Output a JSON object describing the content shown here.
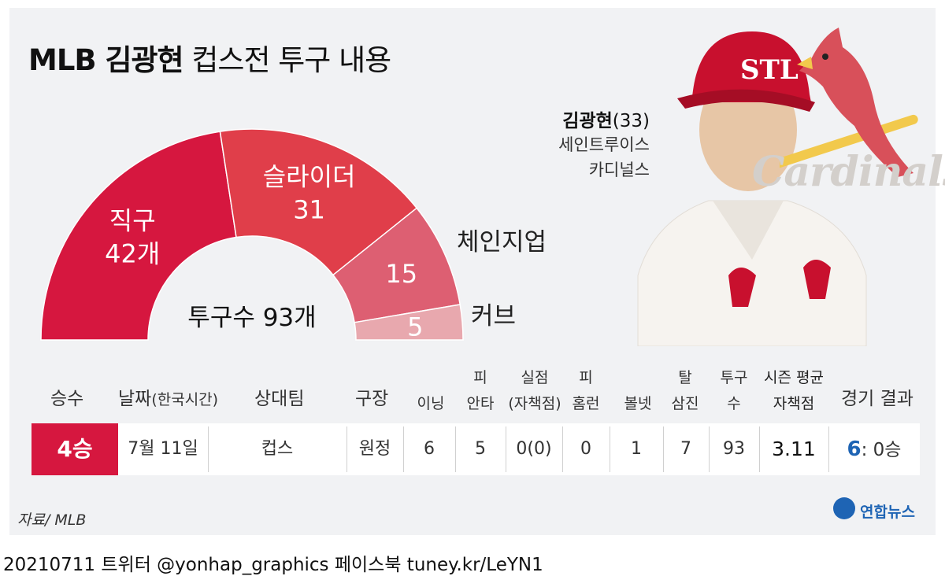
{
  "title": {
    "bold": "MLB 김광현",
    "rest": "컵스전 투구 내용"
  },
  "player": {
    "name": "김광현",
    "age": "(33)",
    "team_line1": "세인트루이스",
    "team_line2": "카디널스"
  },
  "logo": {
    "text": "Cardinals"
  },
  "chart_data": {
    "type": "pie",
    "style": "half-donut",
    "categories": [
      "직구",
      "슬라이더",
      "체인지업",
      "커브"
    ],
    "values": [
      42,
      31,
      15,
      5
    ],
    "value_labels": [
      "42개",
      "31",
      "15",
      "5"
    ],
    "colors": [
      "#d6173f",
      "#e03e4a",
      "#dd5f72",
      "#e8a8ae"
    ],
    "center_label": "투구수 93개",
    "total": 93
  },
  "stats": {
    "headers": {
      "wins": "승수",
      "date": "날짜",
      "date_note": "(한국시간)",
      "opponent": "상대팀",
      "venue": "구장",
      "innings": "이닝",
      "hits_1": "피",
      "hits_2": "안타",
      "er_1": "실점",
      "er_2": "(자책점)",
      "hr_1": "피",
      "hr_2": "홈런",
      "bb": "볼넷",
      "so_1": "탈",
      "so_2": "삼진",
      "pitches_1": "투구",
      "pitches_2": "수",
      "era_1": "시즌 평균",
      "era_2": "자책점",
      "result": "경기 결과"
    },
    "row": {
      "wins": "4승",
      "date": "7월 11일",
      "opponent": "컵스",
      "venue": "원정",
      "innings": "6",
      "hits": "5",
      "runs": "0(0)",
      "hr": "0",
      "bb": "1",
      "so": "7",
      "pitches": "93",
      "era": "3.11",
      "result_score": "6",
      "result_rest": ": 0승"
    }
  },
  "source": "자료/ MLB",
  "brand": "연합뉴스",
  "footer": "20210711   트위터 @yonhap_graphics   페이스북 tuney.kr/LeYN1"
}
